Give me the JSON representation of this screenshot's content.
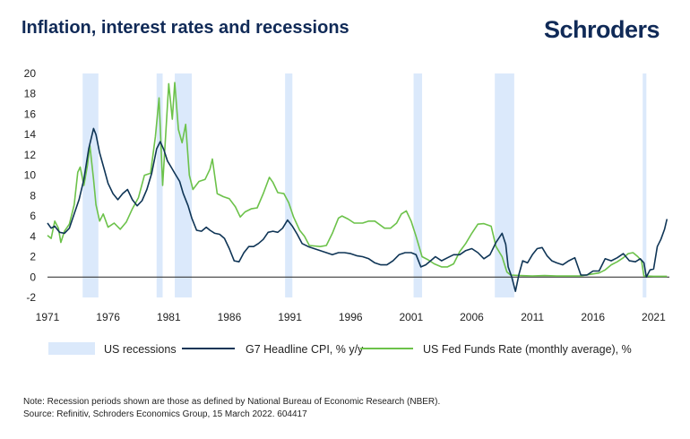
{
  "header": {
    "title": "Inflation, interest rates and recessions",
    "brand": "Schroders"
  },
  "footer": {
    "note": "Note: Recession periods shown are those as defined by National Bureau of Economic Research (NBER).",
    "source": "Source: Refinitiv, Schroders Economics Group, 15 March 2022. 604417"
  },
  "chart_data": {
    "type": "line",
    "title": "Inflation, interest rates and recessions",
    "xlim": [
      1971,
      2022.3
    ],
    "ylim": [
      -2,
      20
    ],
    "x_ticks": [
      1971,
      1976,
      1981,
      1986,
      1991,
      1996,
      2001,
      2006,
      2011,
      2016,
      2021
    ],
    "y_ticks": [
      -2,
      0,
      2,
      4,
      6,
      8,
      10,
      12,
      14,
      16,
      18,
      20
    ],
    "grid": false,
    "legend_position": "bottom",
    "recessions": {
      "name": "US recessions",
      "color": "#dbe9fb",
      "periods": [
        [
          1973.9,
          1975.2
        ],
        [
          1980.0,
          1980.5
        ],
        [
          1981.5,
          1982.9
        ],
        [
          1990.6,
          1991.2
        ],
        [
          2001.2,
          2001.9
        ],
        [
          2007.9,
          2009.5
        ],
        [
          2020.1,
          2020.4
        ]
      ]
    },
    "series": [
      {
        "name": "G7 Headline CPI, % y/y",
        "color": "#0f3556",
        "points": [
          [
            1971.0,
            5.3
          ],
          [
            1971.3,
            4.8
          ],
          [
            1971.6,
            5.0
          ],
          [
            1972.0,
            4.4
          ],
          [
            1972.4,
            4.3
          ],
          [
            1972.8,
            4.8
          ],
          [
            1973.2,
            6.2
          ],
          [
            1973.6,
            7.6
          ],
          [
            1974.0,
            9.6
          ],
          [
            1974.4,
            12.6
          ],
          [
            1974.8,
            14.6
          ],
          [
            1975.0,
            14.0
          ],
          [
            1975.3,
            12.2
          ],
          [
            1975.7,
            10.5
          ],
          [
            1976.0,
            9.2
          ],
          [
            1976.4,
            8.2
          ],
          [
            1976.8,
            7.6
          ],
          [
            1977.2,
            8.2
          ],
          [
            1977.6,
            8.6
          ],
          [
            1978.0,
            7.6
          ],
          [
            1978.4,
            7.0
          ],
          [
            1978.8,
            7.5
          ],
          [
            1979.2,
            8.6
          ],
          [
            1979.6,
            10.2
          ],
          [
            1980.0,
            12.6
          ],
          [
            1980.3,
            13.3
          ],
          [
            1980.6,
            12.5
          ],
          [
            1980.9,
            11.4
          ],
          [
            1981.2,
            10.8
          ],
          [
            1981.5,
            10.2
          ],
          [
            1981.9,
            9.4
          ],
          [
            1982.2,
            8.2
          ],
          [
            1982.6,
            7.0
          ],
          [
            1982.9,
            5.8
          ],
          [
            1983.3,
            4.6
          ],
          [
            1983.7,
            4.5
          ],
          [
            1984.1,
            4.9
          ],
          [
            1984.4,
            4.6
          ],
          [
            1984.8,
            4.3
          ],
          [
            1985.2,
            4.2
          ],
          [
            1985.6,
            3.8
          ],
          [
            1986.0,
            2.8
          ],
          [
            1986.4,
            1.6
          ],
          [
            1986.8,
            1.5
          ],
          [
            1987.2,
            2.4
          ],
          [
            1987.6,
            3.0
          ],
          [
            1988.0,
            3.0
          ],
          [
            1988.4,
            3.3
          ],
          [
            1988.8,
            3.7
          ],
          [
            1989.2,
            4.4
          ],
          [
            1989.6,
            4.5
          ],
          [
            1990.0,
            4.4
          ],
          [
            1990.4,
            4.8
          ],
          [
            1990.8,
            5.6
          ],
          [
            1991.2,
            5.0
          ],
          [
            1991.6,
            4.2
          ],
          [
            1992.0,
            3.3
          ],
          [
            1992.5,
            3.0
          ],
          [
            1993.0,
            2.8
          ],
          [
            1993.5,
            2.6
          ],
          [
            1994.0,
            2.4
          ],
          [
            1994.5,
            2.2
          ],
          [
            1995.0,
            2.4
          ],
          [
            1995.5,
            2.4
          ],
          [
            1996.0,
            2.3
          ],
          [
            1996.5,
            2.1
          ],
          [
            1997.0,
            2.0
          ],
          [
            1997.5,
            1.8
          ],
          [
            1998.0,
            1.4
          ],
          [
            1998.5,
            1.2
          ],
          [
            1999.0,
            1.2
          ],
          [
            1999.5,
            1.6
          ],
          [
            2000.0,
            2.2
          ],
          [
            2000.5,
            2.4
          ],
          [
            2001.0,
            2.4
          ],
          [
            2001.4,
            2.2
          ],
          [
            2001.8,
            1.0
          ],
          [
            2002.2,
            1.2
          ],
          [
            2002.6,
            1.6
          ],
          [
            2003.0,
            2.0
          ],
          [
            2003.5,
            1.6
          ],
          [
            2004.0,
            1.9
          ],
          [
            2004.5,
            2.2
          ],
          [
            2005.0,
            2.2
          ],
          [
            2005.5,
            2.6
          ],
          [
            2006.0,
            2.8
          ],
          [
            2006.5,
            2.4
          ],
          [
            2007.0,
            1.8
          ],
          [
            2007.5,
            2.2
          ],
          [
            2008.0,
            3.4
          ],
          [
            2008.5,
            4.3
          ],
          [
            2008.8,
            3.2
          ],
          [
            2009.0,
            1.0
          ],
          [
            2009.3,
            0.0
          ],
          [
            2009.6,
            -1.4
          ],
          [
            2009.9,
            0.3
          ],
          [
            2010.2,
            1.6
          ],
          [
            2010.6,
            1.4
          ],
          [
            2011.0,
            2.2
          ],
          [
            2011.4,
            2.8
          ],
          [
            2011.8,
            2.9
          ],
          [
            2012.2,
            2.1
          ],
          [
            2012.6,
            1.6
          ],
          [
            2013.0,
            1.4
          ],
          [
            2013.5,
            1.2
          ],
          [
            2014.0,
            1.6
          ],
          [
            2014.5,
            1.9
          ],
          [
            2015.0,
            0.2
          ],
          [
            2015.5,
            0.2
          ],
          [
            2016.0,
            0.6
          ],
          [
            2016.5,
            0.6
          ],
          [
            2017.0,
            1.8
          ],
          [
            2017.5,
            1.6
          ],
          [
            2018.0,
            1.9
          ],
          [
            2018.5,
            2.3
          ],
          [
            2019.0,
            1.6
          ],
          [
            2019.5,
            1.5
          ],
          [
            2019.9,
            1.8
          ],
          [
            2020.2,
            1.4
          ],
          [
            2020.4,
            0.0
          ],
          [
            2020.7,
            0.7
          ],
          [
            2021.0,
            0.8
          ],
          [
            2021.3,
            3.0
          ],
          [
            2021.6,
            3.7
          ],
          [
            2021.9,
            4.7
          ],
          [
            2022.1,
            5.7
          ]
        ]
      },
      {
        "name": "US Fed Funds Rate (monthly average), %",
        "color": "#6cc24a",
        "points": [
          [
            1971.0,
            4.1
          ],
          [
            1971.3,
            3.8
          ],
          [
            1971.6,
            5.5
          ],
          [
            1971.9,
            4.8
          ],
          [
            1972.1,
            3.4
          ],
          [
            1972.4,
            4.5
          ],
          [
            1972.8,
            5.2
          ],
          [
            1973.2,
            7.1
          ],
          [
            1973.5,
            10.3
          ],
          [
            1973.7,
            10.8
          ],
          [
            1974.0,
            9.0
          ],
          [
            1974.3,
            11.0
          ],
          [
            1974.5,
            12.9
          ],
          [
            1974.8,
            9.6
          ],
          [
            1975.0,
            7.1
          ],
          [
            1975.3,
            5.5
          ],
          [
            1975.6,
            6.2
          ],
          [
            1976.0,
            4.9
          ],
          [
            1976.5,
            5.3
          ],
          [
            1977.0,
            4.7
          ],
          [
            1977.5,
            5.4
          ],
          [
            1978.0,
            6.7
          ],
          [
            1978.5,
            7.8
          ],
          [
            1979.0,
            10.0
          ],
          [
            1979.5,
            10.2
          ],
          [
            1979.9,
            13.8
          ],
          [
            1980.2,
            17.6
          ],
          [
            1980.5,
            9.0
          ],
          [
            1980.8,
            15.0
          ],
          [
            1981.0,
            19.0
          ],
          [
            1981.3,
            15.5
          ],
          [
            1981.5,
            19.1
          ],
          [
            1981.8,
            14.5
          ],
          [
            1982.1,
            13.2
          ],
          [
            1982.4,
            15.0
          ],
          [
            1982.7,
            10.0
          ],
          [
            1983.0,
            8.6
          ],
          [
            1983.5,
            9.4
          ],
          [
            1984.0,
            9.6
          ],
          [
            1984.4,
            10.6
          ],
          [
            1984.6,
            11.6
          ],
          [
            1985.0,
            8.2
          ],
          [
            1985.5,
            7.9
          ],
          [
            1986.0,
            7.7
          ],
          [
            1986.5,
            6.9
          ],
          [
            1986.9,
            5.9
          ],
          [
            1987.3,
            6.4
          ],
          [
            1987.8,
            6.7
          ],
          [
            1988.3,
            6.8
          ],
          [
            1988.8,
            8.2
          ],
          [
            1989.3,
            9.8
          ],
          [
            1989.6,
            9.3
          ],
          [
            1990.0,
            8.3
          ],
          [
            1990.5,
            8.2
          ],
          [
            1990.9,
            7.3
          ],
          [
            1991.3,
            5.9
          ],
          [
            1991.8,
            4.6
          ],
          [
            1992.2,
            4.0
          ],
          [
            1992.6,
            3.1
          ],
          [
            1993.5,
            3.0
          ],
          [
            1994.0,
            3.1
          ],
          [
            1994.5,
            4.3
          ],
          [
            1995.0,
            5.8
          ],
          [
            1995.3,
            6.0
          ],
          [
            1995.8,
            5.7
          ],
          [
            1996.3,
            5.3
          ],
          [
            1997.0,
            5.3
          ],
          [
            1997.5,
            5.5
          ],
          [
            1998.0,
            5.5
          ],
          [
            1998.8,
            4.8
          ],
          [
            1999.3,
            4.8
          ],
          [
            1999.8,
            5.3
          ],
          [
            2000.2,
            6.2
          ],
          [
            2000.6,
            6.5
          ],
          [
            2001.0,
            5.5
          ],
          [
            2001.4,
            4.0
          ],
          [
            2001.9,
            2.0
          ],
          [
            2002.4,
            1.7
          ],
          [
            2002.9,
            1.3
          ],
          [
            2003.5,
            1.0
          ],
          [
            2004.0,
            1.0
          ],
          [
            2004.5,
            1.3
          ],
          [
            2005.0,
            2.5
          ],
          [
            2005.5,
            3.3
          ],
          [
            2006.0,
            4.3
          ],
          [
            2006.5,
            5.2
          ],
          [
            2007.0,
            5.25
          ],
          [
            2007.6,
            5.0
          ],
          [
            2008.0,
            3.0
          ],
          [
            2008.5,
            2.0
          ],
          [
            2008.9,
            0.5
          ],
          [
            2009.2,
            0.2
          ],
          [
            2010.0,
            0.15
          ],
          [
            2011.0,
            0.1
          ],
          [
            2012.0,
            0.15
          ],
          [
            2013.0,
            0.1
          ],
          [
            2014.0,
            0.1
          ],
          [
            2015.0,
            0.12
          ],
          [
            2015.9,
            0.3
          ],
          [
            2016.5,
            0.4
          ],
          [
            2017.0,
            0.7
          ],
          [
            2017.5,
            1.2
          ],
          [
            2018.0,
            1.5
          ],
          [
            2018.5,
            1.9
          ],
          [
            2018.9,
            2.3
          ],
          [
            2019.3,
            2.4
          ],
          [
            2019.7,
            2.0
          ],
          [
            2020.0,
            1.6
          ],
          [
            2020.2,
            0.1
          ],
          [
            2021.0,
            0.08
          ],
          [
            2022.1,
            0.08
          ]
        ]
      }
    ]
  }
}
